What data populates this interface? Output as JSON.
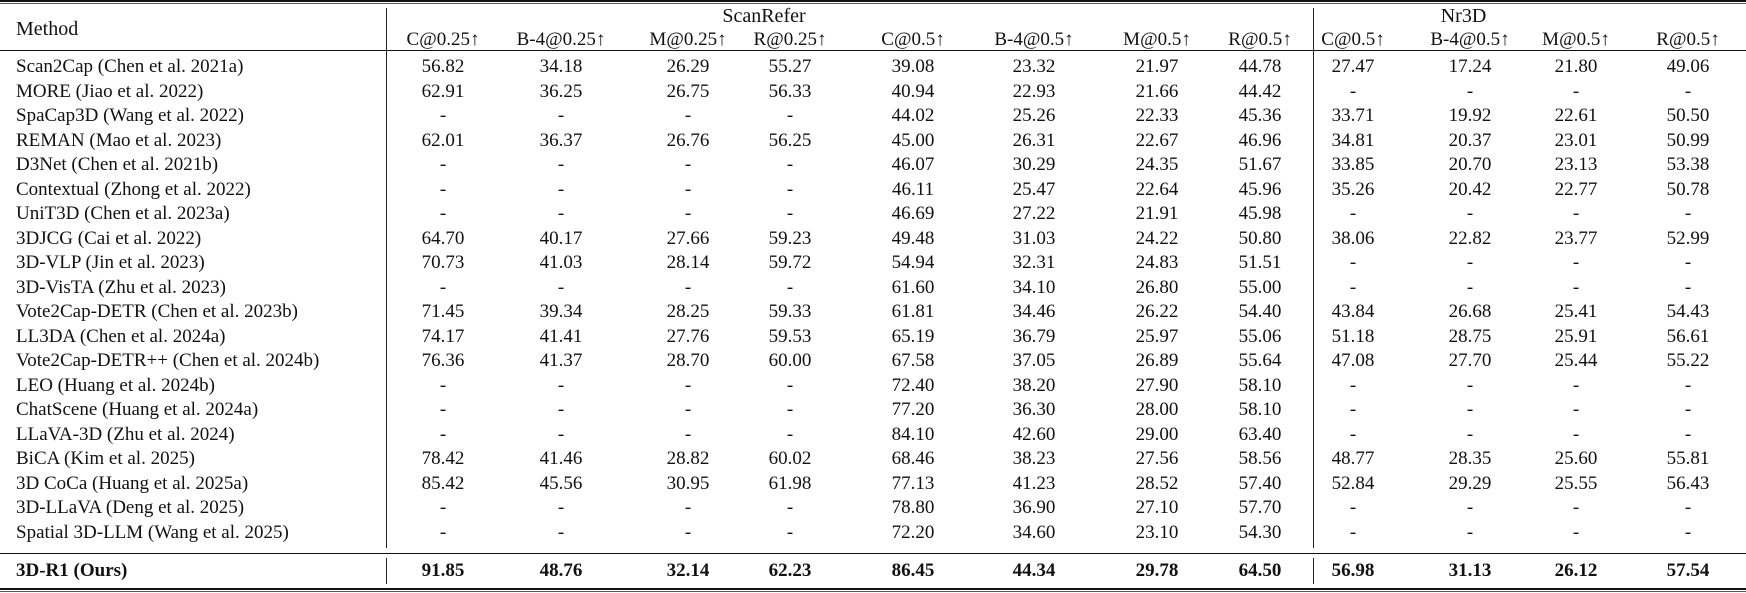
{
  "table": {
    "method_header": "Method",
    "groups": [
      {
        "label": "ScanRefer",
        "columns": [
          "C@0.25↑",
          "B-4@0.25↑",
          "M@0.25↑",
          "R@0.25↑",
          "C@0.5↑",
          "B-4@0.5↑",
          "M@0.5↑",
          "R@0.5↑"
        ]
      },
      {
        "label": "Nr3D",
        "columns": [
          "C@0.5↑",
          "B-4@0.5↑",
          "M@0.5↑",
          "R@0.5↑"
        ]
      }
    ],
    "rows": [
      {
        "method": "Scan2Cap (Chen et al. 2021a)",
        "values": [
          "56.82",
          "34.18",
          "26.29",
          "55.27",
          "39.08",
          "23.32",
          "21.97",
          "44.78",
          "27.47",
          "17.24",
          "21.80",
          "49.06"
        ]
      },
      {
        "method": "MORE (Jiao et al. 2022)",
        "values": [
          "62.91",
          "36.25",
          "26.75",
          "56.33",
          "40.94",
          "22.93",
          "21.66",
          "44.42",
          "-",
          "-",
          "-",
          "-"
        ]
      },
      {
        "method": "SpaCap3D (Wang et al. 2022)",
        "values": [
          "-",
          "-",
          "-",
          "-",
          "44.02",
          "25.26",
          "22.33",
          "45.36",
          "33.71",
          "19.92",
          "22.61",
          "50.50"
        ]
      },
      {
        "method": "REMAN (Mao et al. 2023)",
        "values": [
          "62.01",
          "36.37",
          "26.76",
          "56.25",
          "45.00",
          "26.31",
          "22.67",
          "46.96",
          "34.81",
          "20.37",
          "23.01",
          "50.99"
        ]
      },
      {
        "method": "D3Net (Chen et al. 2021b)",
        "values": [
          "-",
          "-",
          "-",
          "-",
          "46.07",
          "30.29",
          "24.35",
          "51.67",
          "33.85",
          "20.70",
          "23.13",
          "53.38"
        ]
      },
      {
        "method": "Contextual (Zhong et al. 2022)",
        "values": [
          "-",
          "-",
          "-",
          "-",
          "46.11",
          "25.47",
          "22.64",
          "45.96",
          "35.26",
          "20.42",
          "22.77",
          "50.78"
        ]
      },
      {
        "method": "UniT3D (Chen et al. 2023a)",
        "values": [
          "-",
          "-",
          "-",
          "-",
          "46.69",
          "27.22",
          "21.91",
          "45.98",
          "-",
          "-",
          "-",
          "-"
        ]
      },
      {
        "method": "3DJCG (Cai et al. 2022)",
        "values": [
          "64.70",
          "40.17",
          "27.66",
          "59.23",
          "49.48",
          "31.03",
          "24.22",
          "50.80",
          "38.06",
          "22.82",
          "23.77",
          "52.99"
        ]
      },
      {
        "method": "3D-VLP (Jin et al. 2023)",
        "values": [
          "70.73",
          "41.03",
          "28.14",
          "59.72",
          "54.94",
          "32.31",
          "24.83",
          "51.51",
          "-",
          "-",
          "-",
          "-"
        ]
      },
      {
        "method": "3D-VisTA (Zhu et al. 2023)",
        "values": [
          "-",
          "-",
          "-",
          "-",
          "61.60",
          "34.10",
          "26.80",
          "55.00",
          "-",
          "-",
          "-",
          "-"
        ]
      },
      {
        "method": "Vote2Cap-DETR (Chen et al. 2023b)",
        "values": [
          "71.45",
          "39.34",
          "28.25",
          "59.33",
          "61.81",
          "34.46",
          "26.22",
          "54.40",
          "43.84",
          "26.68",
          "25.41",
          "54.43"
        ]
      },
      {
        "method": "LL3DA (Chen et al. 2024a)",
        "values": [
          "74.17",
          "41.41",
          "27.76",
          "59.53",
          "65.19",
          "36.79",
          "25.97",
          "55.06",
          "51.18",
          "28.75",
          "25.91",
          "56.61"
        ]
      },
      {
        "method": "Vote2Cap-DETR++ (Chen et al. 2024b)",
        "values": [
          "76.36",
          "41.37",
          "28.70",
          "60.00",
          "67.58",
          "37.05",
          "26.89",
          "55.64",
          "47.08",
          "27.70",
          "25.44",
          "55.22"
        ]
      },
      {
        "method": "LEO (Huang et al. 2024b)",
        "values": [
          "-",
          "-",
          "-",
          "-",
          "72.40",
          "38.20",
          "27.90",
          "58.10",
          "-",
          "-",
          "-",
          "-"
        ]
      },
      {
        "method": "ChatScene (Huang et al. 2024a)",
        "values": [
          "-",
          "-",
          "-",
          "-",
          "77.20",
          "36.30",
          "28.00",
          "58.10",
          "-",
          "-",
          "-",
          "-"
        ]
      },
      {
        "method": "LLaVA-3D (Zhu et al. 2024)",
        "values": [
          "-",
          "-",
          "-",
          "-",
          "84.10",
          "42.60",
          "29.00",
          "63.40",
          "-",
          "-",
          "-",
          "-"
        ]
      },
      {
        "method": "BiCA (Kim et al. 2025)",
        "values": [
          "78.42",
          "41.46",
          "28.82",
          "60.02",
          "68.46",
          "38.23",
          "27.56",
          "58.56",
          "48.77",
          "28.35",
          "25.60",
          "55.81"
        ]
      },
      {
        "method": "3D CoCa (Huang et al. 2025a)",
        "values": [
          "85.42",
          "45.56",
          "30.95",
          "61.98",
          "77.13",
          "41.23",
          "28.52",
          "57.40",
          "52.84",
          "29.29",
          "25.55",
          "56.43"
        ]
      },
      {
        "method": "3D-LLaVA (Deng et al. 2025)",
        "values": [
          "-",
          "-",
          "-",
          "-",
          "78.80",
          "36.90",
          "27.10",
          "57.70",
          "-",
          "-",
          "-",
          "-"
        ]
      },
      {
        "method": "Spatial 3D-LLM (Wang et al. 2025)",
        "values": [
          "-",
          "-",
          "-",
          "-",
          "72.20",
          "34.60",
          "23.10",
          "54.30",
          "-",
          "-",
          "-",
          "-"
        ]
      }
    ],
    "ours": {
      "method": "3D-R1 (Ours)",
      "values": [
        "91.85",
        "48.76",
        "32.14",
        "62.23",
        "86.45",
        "44.34",
        "29.78",
        "64.50",
        "56.98",
        "31.13",
        "26.12",
        "57.54"
      ]
    }
  }
}
